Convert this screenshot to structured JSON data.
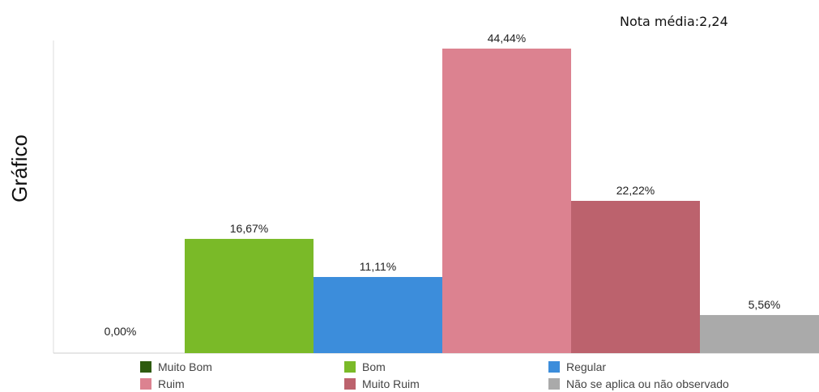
{
  "chart_data": {
    "type": "bar",
    "annotation": "Nota média:2,24",
    "ylabel": "Gráfico",
    "ylim": [
      0,
      44.44
    ],
    "grid": false,
    "legend_position": "bottom",
    "categories": [
      "Muito Bom",
      "Bom",
      "Regular",
      "Ruim",
      "Muito Ruim",
      "Não se aplica ou não observado"
    ],
    "values": [
      0.0,
      16.67,
      11.11,
      44.44,
      22.22,
      5.56
    ],
    "value_labels": [
      "0,00%",
      "16,67%",
      "11,11%",
      "44,44%",
      "22,22%",
      "5,56%"
    ],
    "colors": [
      "#2e5b0f",
      "#7aba28",
      "#3c8ddb",
      "#dc8290",
      "#bc626d",
      "#aaaaaa"
    ]
  }
}
